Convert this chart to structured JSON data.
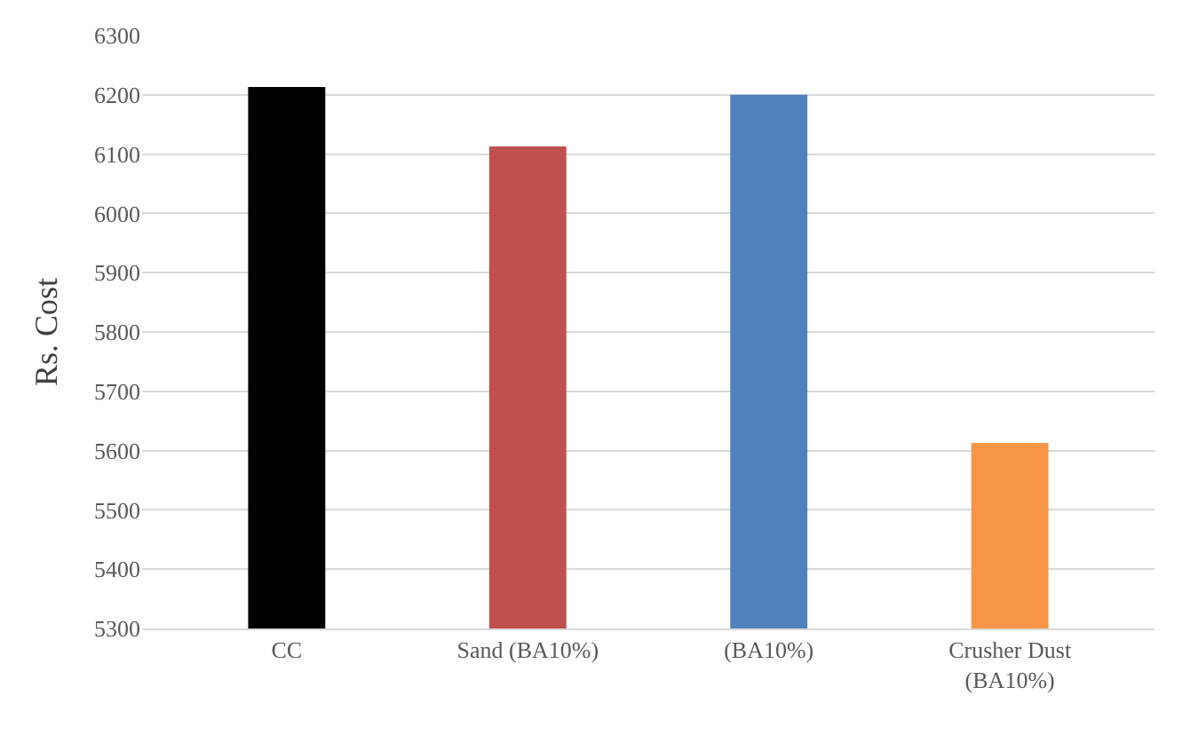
{
  "chart_data": {
    "type": "bar",
    "ylabel": "Rs. Cost",
    "categories": [
      "CC",
      "Sand (BA10%)",
      "(BA10%)",
      "Crusher Dust\n(BA10%)"
    ],
    "values": [
      6213,
      6113,
      6200,
      5613
    ],
    "colors": [
      "#000000",
      "#c0504d",
      "#4f81bd",
      "#f79646"
    ],
    "ylim": [
      5300,
      6300
    ],
    "yticks": [
      5300,
      5400,
      5500,
      5600,
      5700,
      5800,
      5900,
      6000,
      6100,
      6200,
      6300
    ],
    "grid": "y"
  }
}
